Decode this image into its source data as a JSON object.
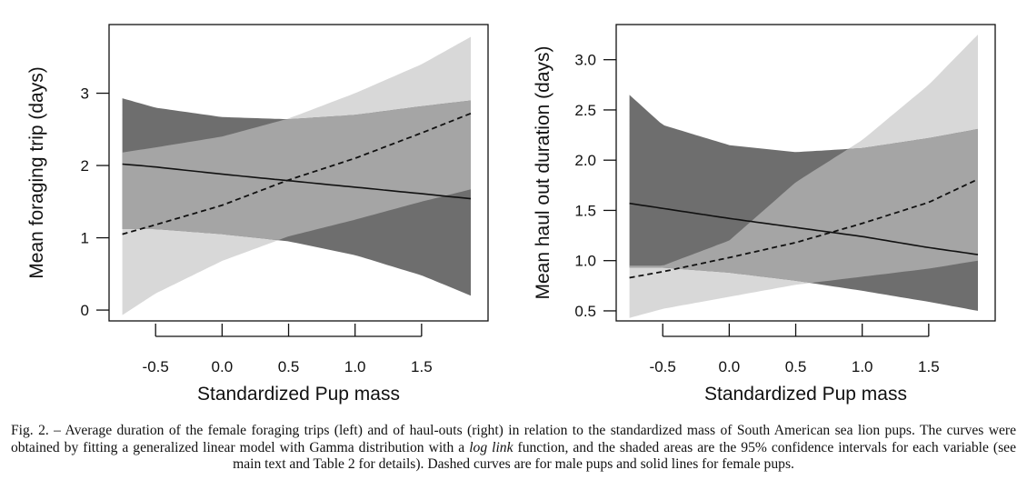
{
  "figure": {
    "caption": {
      "lead": "Fig. 2. – Average duration of the female foraging trips (left) and of haul-outs (right) in relation to the standardized mass of South American sea lion pups. The curves were obtained by fitting a generalized linear model with Gamma distribution with a ",
      "emphasis": "log link",
      "tail": " function, and the shaded areas are the 95% confidence intervals for each variable (see main text and Table 2 for details). Dashed curves are for male pups and solid lines for female pups."
    }
  },
  "chart_data": [
    {
      "type": "line",
      "title": "",
      "xlabel": "Standardized Pup mass",
      "ylabel": "Mean foraging trip (days)",
      "xlim": [
        -0.85,
        2.0
      ],
      "ylim": [
        -0.15,
        3.95
      ],
      "xticks": [
        -0.5,
        0.0,
        0.5,
        1.0,
        1.5
      ],
      "xtick_labels": [
        "-0.5",
        "0.0",
        "0.5",
        "1.0",
        "1.5"
      ],
      "yticks": [
        0,
        1,
        2,
        3
      ],
      "ytick_labels": [
        "0",
        "1",
        "2",
        "3"
      ],
      "grid": false,
      "legend": "none",
      "colors": {
        "female_ci": "#6e6e6e",
        "male_ci": "#d8d8d8",
        "overlap": "#a5a5a5",
        "line": "#111111"
      },
      "series": [
        {
          "style": "dashed",
          "x": [
            -0.75,
            -0.5,
            0.0,
            0.5,
            1.0,
            1.5,
            1.87
          ],
          "y": [
            1.05,
            1.18,
            1.45,
            1.8,
            2.1,
            2.45,
            2.72
          ],
          "ci_lower": [
            -0.07,
            0.23,
            0.68,
            1.02,
            1.25,
            1.5,
            1.67
          ],
          "ci_upper": [
            2.18,
            2.25,
            2.4,
            2.65,
            3.0,
            3.4,
            3.78
          ]
        },
        {
          "style": "solid",
          "x": [
            -0.75,
            -0.5,
            0.0,
            0.5,
            1.0,
            1.5,
            1.87
          ],
          "y": [
            2.02,
            1.98,
            1.88,
            1.79,
            1.7,
            1.61,
            1.54
          ],
          "ci_lower": [
            1.12,
            1.12,
            1.05,
            0.95,
            0.76,
            0.48,
            0.2
          ],
          "ci_upper": [
            2.93,
            2.8,
            2.67,
            2.64,
            2.7,
            2.82,
            2.9
          ]
        }
      ]
    },
    {
      "type": "line",
      "title": "",
      "xlabel": "Standardized Pup mass",
      "ylabel": "Mean haul out duration (days)",
      "xlim": [
        -0.85,
        2.0
      ],
      "ylim": [
        0.4,
        3.35
      ],
      "xticks": [
        -0.5,
        0.0,
        0.5,
        1.0,
        1.5
      ],
      "xtick_labels": [
        "-0.5",
        "0.0",
        "0.5",
        "1.0",
        "1.5"
      ],
      "yticks": [
        0.5,
        1.0,
        1.5,
        2.0,
        2.5,
        3.0
      ],
      "ytick_labels": [
        "0.5",
        "1.0",
        "1.5",
        "2.0",
        "2.5",
        "3.0"
      ],
      "grid": false,
      "legend": "none",
      "colors": {
        "female_ci": "#6e6e6e",
        "male_ci": "#d8d8d8",
        "overlap": "#a5a5a5",
        "line": "#111111"
      },
      "series": [
        {
          "style": "dashed",
          "x": [
            -0.75,
            -0.5,
            0.0,
            0.5,
            1.0,
            1.5,
            1.87
          ],
          "y": [
            0.83,
            0.89,
            1.03,
            1.18,
            1.37,
            1.58,
            1.81
          ],
          "ci_lower": [
            0.43,
            0.52,
            0.64,
            0.76,
            0.84,
            0.92,
            1.0
          ],
          "ci_upper": [
            0.95,
            0.95,
            1.2,
            1.78,
            2.2,
            2.75,
            3.25
          ]
        },
        {
          "style": "solid",
          "x": [
            -0.75,
            -0.5,
            0.0,
            0.5,
            1.0,
            1.5,
            1.87
          ],
          "y": [
            1.57,
            1.52,
            1.42,
            1.33,
            1.24,
            1.13,
            1.06
          ],
          "ci_lower": [
            0.93,
            0.93,
            0.88,
            0.8,
            0.7,
            0.59,
            0.5
          ],
          "ci_upper": [
            2.65,
            2.35,
            2.15,
            2.08,
            2.12,
            2.22,
            2.31
          ]
        }
      ]
    }
  ]
}
